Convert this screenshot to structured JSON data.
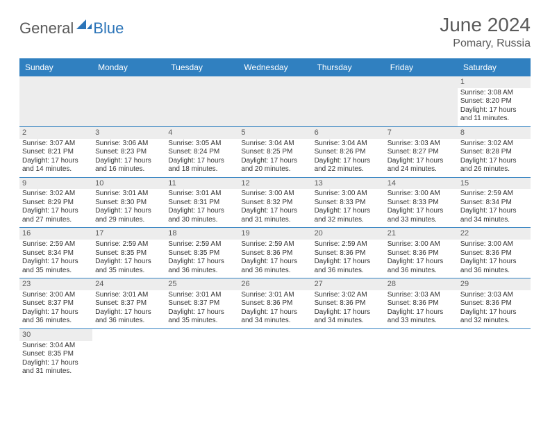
{
  "logo": {
    "general": "General",
    "blue": "Blue"
  },
  "title": "June 2024",
  "location": "Pomary, Russia",
  "colors": {
    "header_bg": "#3080c0",
    "header_text": "#ffffff",
    "border": "#3080c0",
    "empty_bg": "#ededed",
    "text": "#333333",
    "muted": "#5a5a5a"
  },
  "dayNames": [
    "Sunday",
    "Monday",
    "Tuesday",
    "Wednesday",
    "Thursday",
    "Friday",
    "Saturday"
  ],
  "weeks": [
    [
      null,
      null,
      null,
      null,
      null,
      null,
      {
        "n": "1",
        "sr": "Sunrise: 3:08 AM",
        "ss": "Sunset: 8:20 PM",
        "d1": "Daylight: 17 hours",
        "d2": "and 11 minutes."
      }
    ],
    [
      {
        "n": "2",
        "sr": "Sunrise: 3:07 AM",
        "ss": "Sunset: 8:21 PM",
        "d1": "Daylight: 17 hours",
        "d2": "and 14 minutes."
      },
      {
        "n": "3",
        "sr": "Sunrise: 3:06 AM",
        "ss": "Sunset: 8:23 PM",
        "d1": "Daylight: 17 hours",
        "d2": "and 16 minutes."
      },
      {
        "n": "4",
        "sr": "Sunrise: 3:05 AM",
        "ss": "Sunset: 8:24 PM",
        "d1": "Daylight: 17 hours",
        "d2": "and 18 minutes."
      },
      {
        "n": "5",
        "sr": "Sunrise: 3:04 AM",
        "ss": "Sunset: 8:25 PM",
        "d1": "Daylight: 17 hours",
        "d2": "and 20 minutes."
      },
      {
        "n": "6",
        "sr": "Sunrise: 3:04 AM",
        "ss": "Sunset: 8:26 PM",
        "d1": "Daylight: 17 hours",
        "d2": "and 22 minutes."
      },
      {
        "n": "7",
        "sr": "Sunrise: 3:03 AM",
        "ss": "Sunset: 8:27 PM",
        "d1": "Daylight: 17 hours",
        "d2": "and 24 minutes."
      },
      {
        "n": "8",
        "sr": "Sunrise: 3:02 AM",
        "ss": "Sunset: 8:28 PM",
        "d1": "Daylight: 17 hours",
        "d2": "and 26 minutes."
      }
    ],
    [
      {
        "n": "9",
        "sr": "Sunrise: 3:02 AM",
        "ss": "Sunset: 8:29 PM",
        "d1": "Daylight: 17 hours",
        "d2": "and 27 minutes."
      },
      {
        "n": "10",
        "sr": "Sunrise: 3:01 AM",
        "ss": "Sunset: 8:30 PM",
        "d1": "Daylight: 17 hours",
        "d2": "and 29 minutes."
      },
      {
        "n": "11",
        "sr": "Sunrise: 3:01 AM",
        "ss": "Sunset: 8:31 PM",
        "d1": "Daylight: 17 hours",
        "d2": "and 30 minutes."
      },
      {
        "n": "12",
        "sr": "Sunrise: 3:00 AM",
        "ss": "Sunset: 8:32 PM",
        "d1": "Daylight: 17 hours",
        "d2": "and 31 minutes."
      },
      {
        "n": "13",
        "sr": "Sunrise: 3:00 AM",
        "ss": "Sunset: 8:33 PM",
        "d1": "Daylight: 17 hours",
        "d2": "and 32 minutes."
      },
      {
        "n": "14",
        "sr": "Sunrise: 3:00 AM",
        "ss": "Sunset: 8:33 PM",
        "d1": "Daylight: 17 hours",
        "d2": "and 33 minutes."
      },
      {
        "n": "15",
        "sr": "Sunrise: 2:59 AM",
        "ss": "Sunset: 8:34 PM",
        "d1": "Daylight: 17 hours",
        "d2": "and 34 minutes."
      }
    ],
    [
      {
        "n": "16",
        "sr": "Sunrise: 2:59 AM",
        "ss": "Sunset: 8:34 PM",
        "d1": "Daylight: 17 hours",
        "d2": "and 35 minutes."
      },
      {
        "n": "17",
        "sr": "Sunrise: 2:59 AM",
        "ss": "Sunset: 8:35 PM",
        "d1": "Daylight: 17 hours",
        "d2": "and 35 minutes."
      },
      {
        "n": "18",
        "sr": "Sunrise: 2:59 AM",
        "ss": "Sunset: 8:35 PM",
        "d1": "Daylight: 17 hours",
        "d2": "and 36 minutes."
      },
      {
        "n": "19",
        "sr": "Sunrise: 2:59 AM",
        "ss": "Sunset: 8:36 PM",
        "d1": "Daylight: 17 hours",
        "d2": "and 36 minutes."
      },
      {
        "n": "20",
        "sr": "Sunrise: 2:59 AM",
        "ss": "Sunset: 8:36 PM",
        "d1": "Daylight: 17 hours",
        "d2": "and 36 minutes."
      },
      {
        "n": "21",
        "sr": "Sunrise: 3:00 AM",
        "ss": "Sunset: 8:36 PM",
        "d1": "Daylight: 17 hours",
        "d2": "and 36 minutes."
      },
      {
        "n": "22",
        "sr": "Sunrise: 3:00 AM",
        "ss": "Sunset: 8:36 PM",
        "d1": "Daylight: 17 hours",
        "d2": "and 36 minutes."
      }
    ],
    [
      {
        "n": "23",
        "sr": "Sunrise: 3:00 AM",
        "ss": "Sunset: 8:37 PM",
        "d1": "Daylight: 17 hours",
        "d2": "and 36 minutes."
      },
      {
        "n": "24",
        "sr": "Sunrise: 3:01 AM",
        "ss": "Sunset: 8:37 PM",
        "d1": "Daylight: 17 hours",
        "d2": "and 36 minutes."
      },
      {
        "n": "25",
        "sr": "Sunrise: 3:01 AM",
        "ss": "Sunset: 8:37 PM",
        "d1": "Daylight: 17 hours",
        "d2": "and 35 minutes."
      },
      {
        "n": "26",
        "sr": "Sunrise: 3:01 AM",
        "ss": "Sunset: 8:36 PM",
        "d1": "Daylight: 17 hours",
        "d2": "and 34 minutes."
      },
      {
        "n": "27",
        "sr": "Sunrise: 3:02 AM",
        "ss": "Sunset: 8:36 PM",
        "d1": "Daylight: 17 hours",
        "d2": "and 34 minutes."
      },
      {
        "n": "28",
        "sr": "Sunrise: 3:03 AM",
        "ss": "Sunset: 8:36 PM",
        "d1": "Daylight: 17 hours",
        "d2": "and 33 minutes."
      },
      {
        "n": "29",
        "sr": "Sunrise: 3:03 AM",
        "ss": "Sunset: 8:36 PM",
        "d1": "Daylight: 17 hours",
        "d2": "and 32 minutes."
      }
    ],
    [
      {
        "n": "30",
        "sr": "Sunrise: 3:04 AM",
        "ss": "Sunset: 8:35 PM",
        "d1": "Daylight: 17 hours",
        "d2": "and 31 minutes."
      },
      null,
      null,
      null,
      null,
      null,
      null
    ]
  ]
}
